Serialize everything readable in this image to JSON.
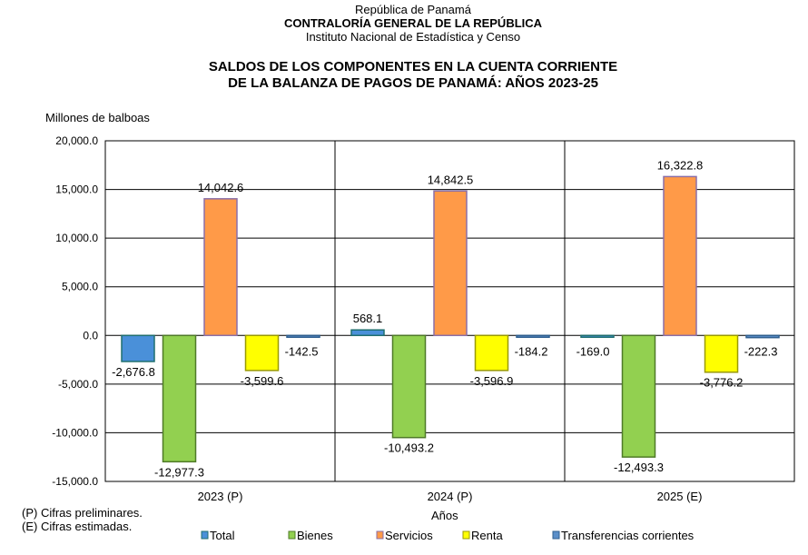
{
  "header": {
    "line1": "República de Panamá",
    "line2": "CONTRALORÍA GENERAL DE LA REPÚBLICA",
    "line3": "Instituto Nacional de Estadística y Censo"
  },
  "notes": [
    "(P) Cifras preliminares.",
    "(E) Cifras estimadas."
  ],
  "chart_data": {
    "type": "bar",
    "title": [
      "SALDOS DE LOS COMPONENTES EN LA CUENTA CORRIENTE",
      "DE LA BALANZA DE PAGOS DE PANAMÁ: AÑOS 2023-25"
    ],
    "ylabel": "Millones de balboas",
    "xlabel": "Años",
    "ylim": [
      -15000,
      20000
    ],
    "yticks": [
      20000,
      15000,
      10000,
      5000,
      0,
      -5000,
      -10000,
      -15000
    ],
    "ytick_labels": [
      "20,000.0",
      "15,000.0",
      "10,000.0",
      "5,000.0",
      "0.0",
      "-5,000.0",
      "-10,000.0",
      "-15,000.0"
    ],
    "grid": true,
    "legend_position": "bottom",
    "categories": [
      "2023 (P)",
      "2024 (P)",
      "2025 (E)"
    ],
    "series": [
      {
        "name": "Total",
        "color": "#4a90d9",
        "border": "#1f6f6f",
        "values": [
          -2676.8,
          568.1,
          -169.0
        ],
        "labels": [
          "-2,676.8",
          "568.1",
          "-169.0"
        ]
      },
      {
        "name": "Bienes",
        "color": "#92d050",
        "border": "#4f7a28",
        "values": [
          -12977.3,
          -10493.2,
          -12493.3
        ],
        "labels": [
          "-12,977.3",
          "-10,493.2",
          "-12,493.3"
        ]
      },
      {
        "name": "Servicios",
        "color": "#ff9a48",
        "border": "#8a6fa8",
        "values": [
          14042.6,
          14842.5,
          16322.8
        ],
        "labels": [
          "14,042.6",
          "14,842.5",
          "16,322.8"
        ]
      },
      {
        "name": "Renta",
        "color": "#ffff00",
        "border": "#9a9a00",
        "values": [
          -3599.6,
          -3596.9,
          -3776.2
        ],
        "labels": [
          "-3,599.6",
          "-3,596.9",
          "-3,776.2"
        ]
      },
      {
        "name": "Transferencias corrientes",
        "color": "#5b8fc9",
        "border": "#2f5f8f",
        "values": [
          -142.5,
          -184.2,
          -222.3
        ],
        "labels": [
          "-142.5",
          "-184.2",
          "-222.3"
        ]
      }
    ]
  }
}
